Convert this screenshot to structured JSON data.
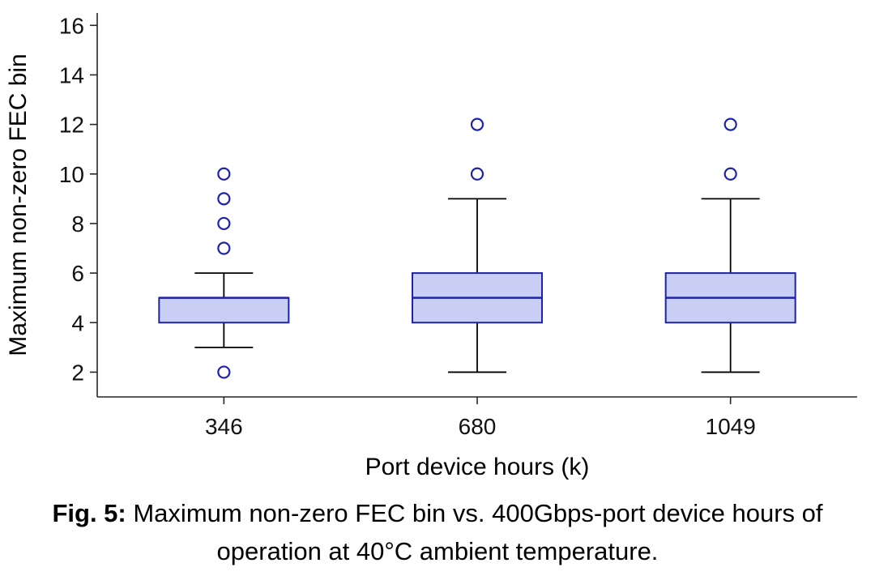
{
  "chart_data": {
    "type": "boxplot",
    "title": "",
    "xlabel": "Port device hours (k)",
    "ylabel": "Maximum non-zero FEC bin",
    "categories": [
      "346",
      "680",
      "1049"
    ],
    "ylim": [
      1,
      16.5
    ],
    "yticks": [
      2,
      4,
      6,
      8,
      10,
      12,
      14,
      16
    ],
    "grid": false,
    "legend": "none",
    "series": [
      {
        "category": "346",
        "whisker_low": 3,
        "q1": 4,
        "median": 5,
        "q3": 5,
        "whisker_high": 6,
        "outliers": [
          2,
          7,
          8,
          9,
          10
        ]
      },
      {
        "category": "680",
        "whisker_low": 2,
        "q1": 4,
        "median": 5,
        "q3": 6,
        "whisker_high": 9,
        "outliers": [
          10,
          12
        ]
      },
      {
        "category": "1049",
        "whisker_low": 2,
        "q1": 4,
        "median": 5,
        "q3": 6,
        "whisker_high": 9,
        "outliers": [
          10,
          12
        ]
      }
    ],
    "colors": {
      "box_fill": "#c9cef4",
      "box_edge": "#1f23a8",
      "median": "#1f23a8",
      "whisker": "#000000",
      "outlier": "#1f23a8",
      "axis": "#262626",
      "tick_text": "#111111",
      "label_text": "#000000"
    }
  },
  "caption": {
    "label": "Fig. 5:",
    "text": " Maximum non-zero FEC bin vs. 400Gbps-port device hours of operation at 40°C ambient temperature."
  }
}
